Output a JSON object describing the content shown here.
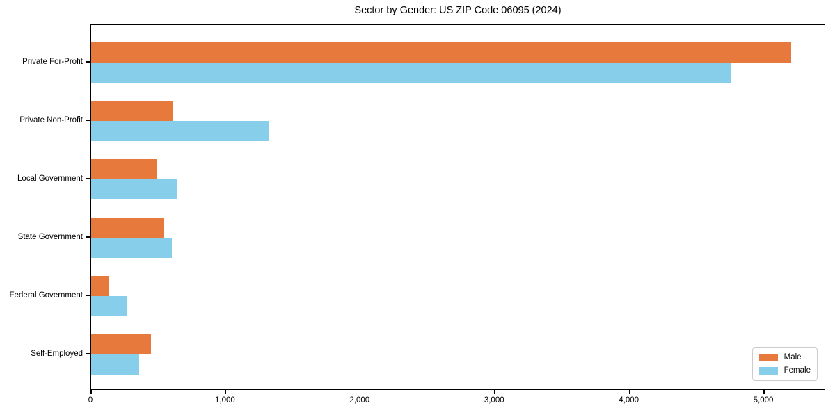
{
  "chart_data": {
    "type": "bar",
    "orientation": "horizontal",
    "title": "Sector by Gender: US ZIP Code 06095 (2024)",
    "categories": [
      "Private For-Profit",
      "Private Non-Profit",
      "Local Government",
      "State Government",
      "Federal Government",
      "Self-Employed"
    ],
    "series": [
      {
        "name": "Male",
        "color": "#E8793D",
        "values": [
          5200,
          610,
          490,
          545,
          135,
          445
        ]
      },
      {
        "name": "Female",
        "color": "#87CEEB",
        "values": [
          4750,
          1320,
          635,
          600,
          265,
          355
        ]
      }
    ],
    "xlabel": "",
    "ylabel": "",
    "xlim": [
      0,
      5460
    ],
    "xticks": [
      0,
      1000,
      2000,
      3000,
      4000,
      5000
    ],
    "xticklabels": [
      "0",
      "1,000",
      "2,000",
      "3,000",
      "4,000",
      "5,000"
    ],
    "grid": false,
    "legend_position": "lower right",
    "colors": {
      "male": "#E8793D",
      "female": "#87CEEB",
      "spine": "#000000",
      "legend_border": "#cccccc"
    }
  }
}
